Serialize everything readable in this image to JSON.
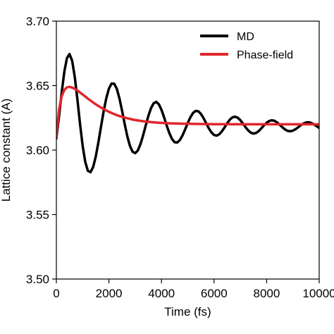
{
  "chart_data": {
    "type": "line",
    "title": "",
    "xlabel": "Time (fs)",
    "ylabel": "Lattice constant (A)",
    "xlim": [
      0,
      10000
    ],
    "ylim": [
      3.5,
      3.7
    ],
    "xticks": [
      0,
      2000,
      4000,
      6000,
      8000,
      10000
    ],
    "xtick_labels": [
      "0",
      "2000",
      "4000",
      "6000",
      "8000",
      "10000"
    ],
    "yticks": [
      3.5,
      3.55,
      3.6,
      3.65,
      3.7
    ],
    "ytick_labels": [
      "3.50",
      "3.55",
      "3.60",
      "3.65",
      "3.70"
    ],
    "grid": false,
    "legend_position": "top-right",
    "series": [
      {
        "name": "MD",
        "color": "#000000",
        "x": [
          0,
          100,
          200,
          300,
          400,
          500,
          600,
          700,
          800,
          900,
          1000,
          1100,
          1200,
          1300,
          1400,
          1500,
          1600,
          1700,
          1800,
          1900,
          2000,
          2100,
          2200,
          2300,
          2400,
          2500,
          2600,
          2700,
          2800,
          2900,
          3000,
          3100,
          3200,
          3300,
          3400,
          3500,
          3600,
          3700,
          3800,
          3900,
          4000,
          4100,
          4200,
          4300,
          4400,
          4500,
          4600,
          4700,
          4800,
          4900,
          5000,
          5100,
          5200,
          5300,
          5400,
          5500,
          5600,
          5700,
          5800,
          5900,
          6000,
          6100,
          6200,
          6300,
          6400,
          6500,
          6600,
          6700,
          6800,
          6900,
          7000,
          7100,
          7200,
          7300,
          7400,
          7500,
          7600,
          7700,
          7800,
          7900,
          8000,
          8100,
          8200,
          8300,
          8400,
          8500,
          8600,
          8700,
          8800,
          8900,
          9000,
          9100,
          9200,
          9300,
          9400,
          9500,
          9600,
          9700,
          9800,
          9900,
          10000
        ],
        "y": [
          3.6091,
          3.6259,
          3.6442,
          3.6604,
          3.6712,
          3.6745,
          3.6693,
          3.6567,
          3.6393,
          3.6203,
          3.6033,
          3.5907,
          3.5839,
          3.5829,
          3.5869,
          3.5951,
          3.6062,
          3.6184,
          3.6302,
          3.6403,
          3.6477,
          3.6516,
          3.6515,
          3.6475,
          3.6401,
          3.6305,
          3.6202,
          3.6106,
          3.6032,
          3.5987,
          3.5976,
          3.5997,
          3.6046,
          3.6114,
          3.6191,
          3.6265,
          3.6325,
          3.6363,
          3.6374,
          3.6355,
          3.6312,
          3.6253,
          3.6189,
          3.6131,
          3.6086,
          3.6061,
          3.6059,
          3.6078,
          3.6114,
          3.6161,
          3.621,
          3.6255,
          3.6288,
          3.6304,
          3.6301,
          3.6281,
          3.6248,
          3.6208,
          3.6169,
          3.6137,
          3.6117,
          3.6112,
          3.6123,
          3.6146,
          3.6176,
          3.6208,
          3.6236,
          3.6254,
          3.6259,
          3.6251,
          3.6232,
          3.6205,
          3.6177,
          3.6152,
          3.6135,
          3.6128,
          3.6133,
          3.6148,
          3.6169,
          3.6192,
          3.6212,
          3.6226,
          3.6231,
          3.6227,
          3.6214,
          3.6196,
          3.6177,
          3.616,
          3.6149,
          3.6146,
          3.6151,
          3.6162,
          3.6177,
          3.6193,
          3.6206,
          3.6214,
          3.6216,
          3.621,
          3.6199,
          3.6186,
          3.6172
        ]
      },
      {
        "name": "Phase-field",
        "color": "#e0262b",
        "x": [
          0,
          100,
          200,
          300,
          400,
          500,
          600,
          700,
          800,
          900,
          1000,
          1100,
          1200,
          1300,
          1400,
          1500,
          1600,
          1700,
          1800,
          1900,
          2000,
          2100,
          2200,
          2300,
          2400,
          2500,
          2600,
          2700,
          2800,
          2900,
          3000,
          3100,
          3200,
          3300,
          3400,
          3500,
          3600,
          3700,
          3800,
          3900,
          4000,
          4100,
          4200,
          4300,
          4400,
          4500,
          4600,
          4700,
          4800,
          4900,
          5000,
          5500,
          6000,
          6500,
          7000,
          7500,
          8000,
          8500,
          9000,
          9500,
          10000
        ],
        "y": [
          3.61,
          3.6311,
          3.6416,
          3.6466,
          3.6486,
          3.649,
          3.6485,
          3.6475,
          3.6462,
          3.6447,
          3.6431,
          3.6415,
          3.6399,
          3.6384,
          3.6369,
          3.6355,
          3.6342,
          3.633,
          3.6318,
          3.6307,
          3.6297,
          3.6288,
          3.6279,
          3.6271,
          3.6264,
          3.6258,
          3.6252,
          3.6247,
          3.6242,
          3.6237,
          3.6233,
          3.623,
          3.6227,
          3.6224,
          3.6221,
          3.6219,
          3.6217,
          3.6215,
          3.6214,
          3.6212,
          3.6211,
          3.621,
          3.6209,
          3.6208,
          3.6207,
          3.6206,
          3.6206,
          3.6205,
          3.6205,
          3.6204,
          3.6204,
          3.6202,
          3.6201,
          3.6201,
          3.62,
          3.62,
          3.62,
          3.62,
          3.62,
          3.62,
          3.62
        ]
      }
    ]
  }
}
